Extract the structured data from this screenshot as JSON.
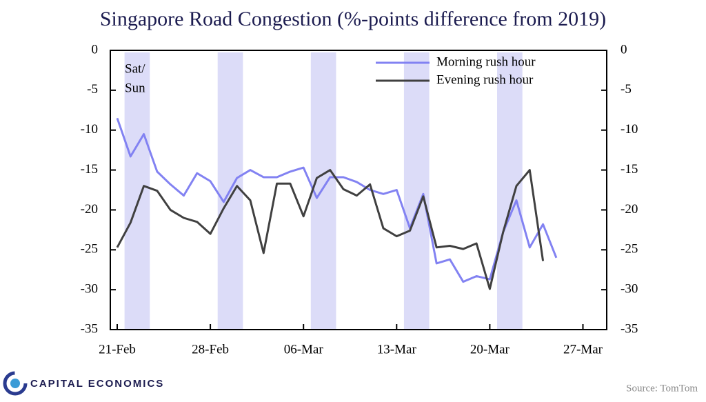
{
  "chart_data": {
    "type": "line",
    "title": "Singapore Road Congestion (%-points difference from 2019)",
    "categories": [
      "21-Feb",
      null,
      null,
      null,
      null,
      null,
      null,
      "28-Feb",
      null,
      null,
      null,
      null,
      null,
      null,
      "06-Mar",
      null,
      null,
      null,
      null,
      null,
      null,
      "13-Mar",
      null,
      null,
      null,
      null,
      null,
      null,
      "20-Mar",
      null,
      null,
      null,
      null,
      null,
      null,
      "27-Mar"
    ],
    "series": [
      {
        "name": "Morning rush hour",
        "color": "#8282f2",
        "values": [
          -8.5,
          -13.3,
          -10.5,
          -15.2,
          -16.8,
          -18.2,
          -15.4,
          -16.4,
          -19,
          -16,
          -15,
          -15.9,
          -15.9,
          -15.2,
          -14.7,
          -18.5,
          -15.9,
          -15.9,
          -16.5,
          -17.5,
          -18,
          -17.5,
          -22.3,
          -18,
          -26.7,
          -26.2,
          -29,
          -28.3,
          -28.7,
          -22.8,
          -18.8,
          -24.7,
          -21.8,
          -26,
          null,
          null
        ]
      },
      {
        "name": "Evening rush hour",
        "color": "#404040",
        "values": [
          -24.7,
          -21.6,
          -17,
          -17.6,
          -20,
          -21,
          -21.5,
          -23,
          -19.8,
          -17,
          -18.8,
          -25.4,
          -16.7,
          -16.7,
          -20.8,
          -16,
          -15,
          -17.4,
          -18.2,
          -16.8,
          -22.3,
          -23.3,
          -22.6,
          -18.3,
          -24.7,
          -24.5,
          -24.9,
          -24.2,
          -29.9,
          -22.8,
          -17,
          -15,
          -26.4,
          null,
          null,
          null
        ]
      }
    ],
    "weekend_bands": [
      [
        1,
        2
      ],
      [
        8,
        9
      ],
      [
        15,
        16
      ],
      [
        22,
        23
      ],
      [
        29,
        30
      ]
    ],
    "band_color": "#dcdcf8",
    "band_label": [
      "Sat/",
      "Sun"
    ],
    "ylim": [
      -35,
      0
    ],
    "yticks": [
      -35,
      -30,
      -25,
      -20,
      -15,
      -10,
      -5,
      0
    ],
    "y2lim": [
      -35,
      0
    ],
    "y2ticks": [
      -35,
      -30,
      -25,
      -20,
      -15,
      -10,
      -5,
      0
    ],
    "legend": "upper right",
    "source": "Source: TomTom",
    "brand": "CAPITAL ECONOMICS"
  }
}
